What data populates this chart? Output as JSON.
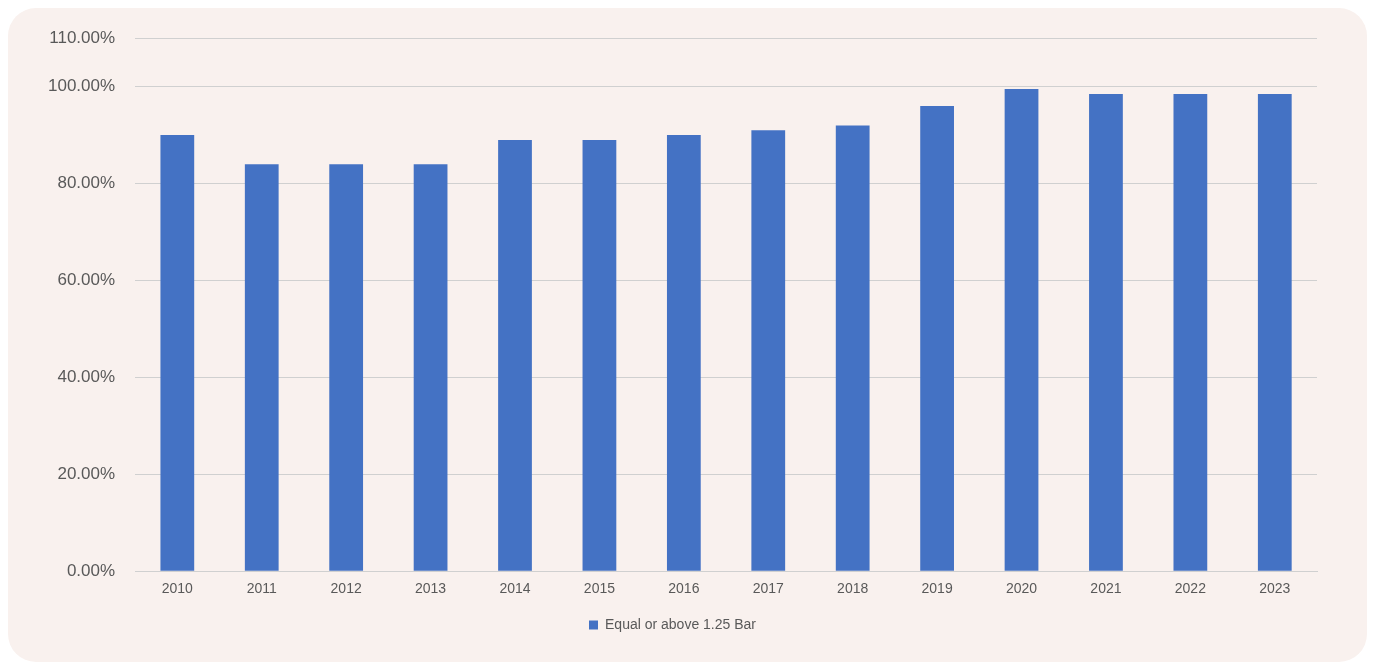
{
  "chart_data": {
    "type": "bar",
    "categories": [
      "2010",
      "2011",
      "2012",
      "2013",
      "2014",
      "2015",
      "2016",
      "2017",
      "2018",
      "2019",
      "2020",
      "2021",
      "2022",
      "2023"
    ],
    "series": [
      {
        "name": "Equal or above 1.25 Bar",
        "color": "#4472c4",
        "values": [
          90,
          84,
          84,
          84,
          89,
          89,
          90,
          91,
          92,
          96,
          99.5,
          98.5,
          98.5,
          98.5
        ]
      }
    ],
    "ylim": [
      0,
      110
    ],
    "yticks": [
      {
        "value": 0,
        "label": "0.00%"
      },
      {
        "value": 20,
        "label": "20.00%"
      },
      {
        "value": 40,
        "label": "40.00%"
      },
      {
        "value": 60,
        "label": "60.00%"
      },
      {
        "value": 80,
        "label": "80.00%"
      },
      {
        "value": 100,
        "label": "100.00%"
      },
      {
        "value": 110,
        "label": "110.00%"
      }
    ],
    "grid": "y",
    "legend": "bottom"
  }
}
